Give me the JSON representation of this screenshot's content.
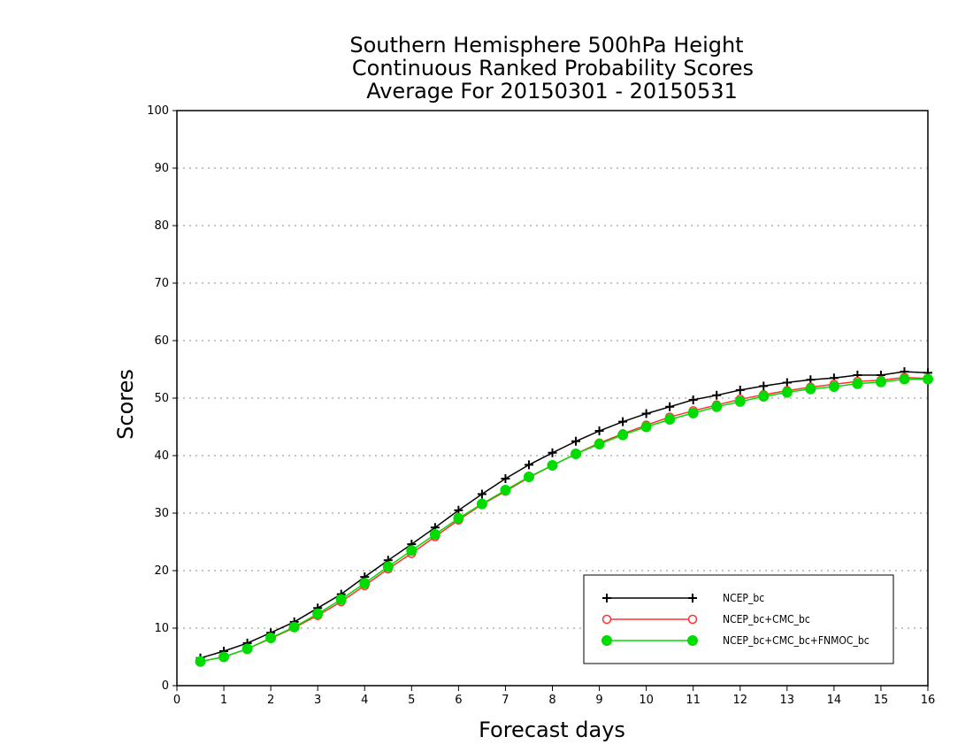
{
  "chart_data": {
    "type": "line",
    "title": [
      "Southern Hemisphere 500hPa Height",
      "Continuous Ranked Probability Scores",
      "Average For 20150301 - 20150531"
    ],
    "xlabel": "Forecast days",
    "ylabel": "Scores",
    "xlim": [
      0,
      16
    ],
    "ylim": [
      0,
      100
    ],
    "x_ticks": [
      "0",
      "1",
      "2",
      "3",
      "4",
      "5",
      "6",
      "7",
      "8",
      "9",
      "10",
      "11",
      "12",
      "13",
      "14",
      "15",
      "16"
    ],
    "y_ticks": [
      "0",
      "10",
      "20",
      "30",
      "40",
      "50",
      "60",
      "70",
      "80",
      "90",
      "100"
    ],
    "grid": "horizontal dotted",
    "legend_position": "bottom-right",
    "x": [
      0.5,
      1,
      1.5,
      2,
      2.5,
      3,
      3.5,
      4,
      4.5,
      5,
      5.5,
      6,
      6.5,
      7,
      7.5,
      8,
      8.5,
      9,
      9.5,
      10,
      10.5,
      11,
      11.5,
      12,
      12.5,
      13,
      13.5,
      14,
      14.5,
      15,
      15.5,
      16
    ],
    "series": [
      {
        "name": "NCEP_bc",
        "color": "#000000",
        "marker": "plus",
        "values": [
          4.8,
          6.0,
          7.4,
          9.2,
          11.1,
          13.5,
          15.9,
          18.9,
          21.8,
          24.6,
          27.5,
          30.5,
          33.3,
          36.0,
          38.4,
          40.5,
          42.5,
          44.3,
          45.9,
          47.3,
          48.5,
          49.7,
          50.5,
          51.4,
          52.1,
          52.7,
          53.2,
          53.5,
          54.0,
          54.0,
          54.6,
          54.4
        ]
      },
      {
        "name": "NCEP_bc+CMC_bc",
        "color": "#ff3030",
        "marker": "open-circle",
        "values": [
          4.2,
          5.0,
          6.4,
          8.2,
          10.1,
          12.2,
          14.6,
          17.4,
          20.3,
          23.0,
          25.9,
          28.8,
          31.5,
          33.8,
          36.2,
          38.3,
          40.3,
          42.2,
          43.8,
          45.3,
          46.7,
          47.8,
          48.8,
          49.8,
          50.6,
          51.3,
          51.9,
          52.4,
          52.9,
          53.1,
          53.6,
          53.4
        ]
      },
      {
        "name": "NCEP_bc+CMC_bc+FNMOC_bc",
        "color": "#00dc00",
        "marker": "filled-circle",
        "values": [
          4.2,
          5.0,
          6.4,
          8.3,
          10.2,
          12.5,
          15.0,
          17.8,
          20.7,
          23.5,
          26.3,
          29.1,
          31.6,
          34.0,
          36.3,
          38.3,
          40.3,
          42.0,
          43.6,
          45.0,
          46.3,
          47.4,
          48.5,
          49.4,
          50.3,
          51.0,
          51.6,
          52.0,
          52.5,
          52.8,
          53.3,
          53.3
        ]
      }
    ]
  }
}
